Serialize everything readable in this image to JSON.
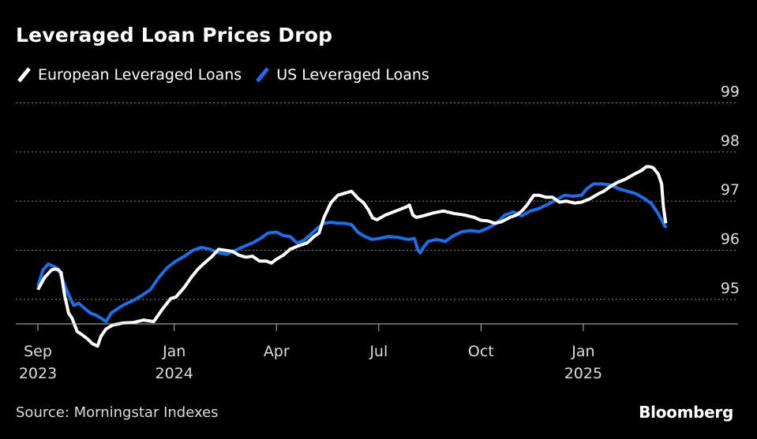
{
  "header": {
    "title": "Leveraged Loan Prices Drop"
  },
  "footer": {
    "source": "Source: Morningstar Indexes",
    "brand": "Bloomberg"
  },
  "chart_data": {
    "type": "line",
    "title": "Leveraged Loan Prices Drop",
    "xlabel": "",
    "ylabel": "",
    "ylim": [
      94.55,
      99.2
    ],
    "xlim": [
      0,
      19.5
    ],
    "y_ticks": [
      95,
      96,
      97,
      98,
      99
    ],
    "x_ticks": [
      {
        "x": 0,
        "label": "Sep",
        "sublabel": "2023"
      },
      {
        "x": 4,
        "label": "Jan",
        "sublabel": "2024"
      },
      {
        "x": 7,
        "label": "Apr",
        "sublabel": ""
      },
      {
        "x": 10,
        "label": "Jul",
        "sublabel": ""
      },
      {
        "x": 13,
        "label": "Oct",
        "sublabel": ""
      },
      {
        "x": 16,
        "label": "Jan",
        "sublabel": "2025"
      }
    ],
    "x_unit": "months since Sep 1, 2023",
    "grid": true,
    "legend_position": "top-left",
    "series": [
      {
        "name": "European Leveraged Loans",
        "color": "#ffffff",
        "points": [
          [
            0.0,
            95.2
          ],
          [
            0.2,
            95.45
          ],
          [
            0.4,
            95.6
          ],
          [
            0.5,
            95.62
          ],
          [
            0.6,
            95.6
          ],
          [
            0.68,
            95.55
          ],
          [
            0.78,
            95.1
          ],
          [
            0.9,
            94.72
          ],
          [
            1.0,
            94.62
          ],
          [
            1.15,
            94.35
          ],
          [
            1.3,
            94.28
          ],
          [
            1.45,
            94.2
          ],
          [
            1.6,
            94.1
          ],
          [
            1.75,
            94.05
          ],
          [
            1.85,
            94.25
          ],
          [
            2.0,
            94.4
          ],
          [
            2.2,
            94.48
          ],
          [
            2.5,
            94.52
          ],
          [
            2.8,
            94.53
          ],
          [
            3.1,
            94.58
          ],
          [
            3.4,
            94.55
          ],
          [
            3.65,
            94.8
          ],
          [
            3.9,
            95.02
          ],
          [
            4.05,
            95.05
          ],
          [
            4.3,
            95.25
          ],
          [
            4.5,
            95.45
          ],
          [
            4.7,
            95.62
          ],
          [
            4.9,
            95.75
          ],
          [
            5.1,
            95.87
          ],
          [
            5.3,
            96.02
          ],
          [
            5.5,
            96.0
          ],
          [
            5.7,
            95.98
          ],
          [
            5.9,
            95.9
          ],
          [
            6.1,
            95.86
          ],
          [
            6.3,
            95.88
          ],
          [
            6.5,
            95.78
          ],
          [
            6.7,
            95.78
          ],
          [
            6.85,
            95.74
          ],
          [
            7.0,
            95.82
          ],
          [
            7.2,
            95.9
          ],
          [
            7.4,
            96.02
          ],
          [
            7.6,
            96.08
          ],
          [
            7.9,
            96.15
          ],
          [
            8.1,
            96.28
          ],
          [
            8.25,
            96.35
          ],
          [
            8.4,
            96.68
          ],
          [
            8.6,
            96.97
          ],
          [
            8.8,
            97.12
          ],
          [
            9.0,
            97.16
          ],
          [
            9.2,
            97.2
          ],
          [
            9.4,
            97.05
          ],
          [
            9.55,
            96.97
          ],
          [
            9.7,
            96.82
          ],
          [
            9.82,
            96.66
          ],
          [
            9.95,
            96.62
          ],
          [
            10.2,
            96.72
          ],
          [
            10.5,
            96.8
          ],
          [
            10.8,
            96.88
          ],
          [
            10.9,
            96.92
          ],
          [
            11.0,
            96.72
          ],
          [
            11.1,
            96.67
          ],
          [
            11.3,
            96.7
          ],
          [
            11.6,
            96.76
          ],
          [
            11.9,
            96.8
          ],
          [
            12.2,
            96.75
          ],
          [
            12.5,
            96.72
          ],
          [
            12.8,
            96.67
          ],
          [
            13.0,
            96.61
          ],
          [
            13.2,
            96.6
          ],
          [
            13.4,
            96.55
          ],
          [
            13.6,
            96.58
          ],
          [
            13.85,
            96.67
          ],
          [
            14.05,
            96.72
          ],
          [
            14.2,
            96.8
          ],
          [
            14.35,
            96.92
          ],
          [
            14.55,
            97.12
          ],
          [
            14.7,
            97.12
          ],
          [
            14.9,
            97.08
          ],
          [
            15.1,
            97.08
          ],
          [
            15.3,
            96.98
          ],
          [
            15.5,
            97.0
          ],
          [
            15.75,
            96.96
          ],
          [
            15.95,
            96.98
          ],
          [
            16.2,
            97.05
          ],
          [
            16.45,
            97.15
          ],
          [
            16.6,
            97.2
          ],
          [
            16.8,
            97.3
          ],
          [
            17.0,
            97.38
          ],
          [
            17.25,
            97.45
          ],
          [
            17.5,
            97.55
          ],
          [
            17.7,
            97.62
          ],
          [
            17.85,
            97.7
          ],
          [
            17.95,
            97.7
          ],
          [
            18.05,
            97.68
          ],
          [
            18.2,
            97.55
          ],
          [
            18.3,
            97.35
          ],
          [
            18.35,
            96.9
          ],
          [
            18.42,
            96.55
          ]
        ]
      },
      {
        "name": "US Leveraged Loans",
        "color": "#1f6ee8",
        "points": [
          [
            0.0,
            95.27
          ],
          [
            0.15,
            95.6
          ],
          [
            0.3,
            95.72
          ],
          [
            0.45,
            95.68
          ],
          [
            0.6,
            95.62
          ],
          [
            0.75,
            95.35
          ],
          [
            0.9,
            95.1
          ],
          [
            1.05,
            94.88
          ],
          [
            1.2,
            94.92
          ],
          [
            1.4,
            94.8
          ],
          [
            1.55,
            94.72
          ],
          [
            1.7,
            94.68
          ],
          [
            1.85,
            94.62
          ],
          [
            2.0,
            94.55
          ],
          [
            2.15,
            94.72
          ],
          [
            2.35,
            94.82
          ],
          [
            2.55,
            94.9
          ],
          [
            2.8,
            94.98
          ],
          [
            3.05,
            95.08
          ],
          [
            3.3,
            95.2
          ],
          [
            3.55,
            95.45
          ],
          [
            3.8,
            95.65
          ],
          [
            4.05,
            95.78
          ],
          [
            4.3,
            95.88
          ],
          [
            4.55,
            96.0
          ],
          [
            4.8,
            96.06
          ],
          [
            5.05,
            96.02
          ],
          [
            5.3,
            95.95
          ],
          [
            5.55,
            95.92
          ],
          [
            5.8,
            96.0
          ],
          [
            6.05,
            96.08
          ],
          [
            6.3,
            96.15
          ],
          [
            6.55,
            96.25
          ],
          [
            6.75,
            96.35
          ],
          [
            7.0,
            96.37
          ],
          [
            7.2,
            96.3
          ],
          [
            7.4,
            96.28
          ],
          [
            7.6,
            96.15
          ],
          [
            7.8,
            96.2
          ],
          [
            8.0,
            96.32
          ],
          [
            8.2,
            96.45
          ],
          [
            8.4,
            96.55
          ],
          [
            8.6,
            96.57
          ],
          [
            8.8,
            96.55
          ],
          [
            9.0,
            96.55
          ],
          [
            9.2,
            96.52
          ],
          [
            9.4,
            96.36
          ],
          [
            9.6,
            96.28
          ],
          [
            9.8,
            96.22
          ],
          [
            10.0,
            96.24
          ],
          [
            10.3,
            96.28
          ],
          [
            10.6,
            96.26
          ],
          [
            10.85,
            96.22
          ],
          [
            11.05,
            96.24
          ],
          [
            11.15,
            96.0
          ],
          [
            11.22,
            95.95
          ],
          [
            11.3,
            96.05
          ],
          [
            11.45,
            96.18
          ],
          [
            11.7,
            96.22
          ],
          [
            11.95,
            96.18
          ],
          [
            12.2,
            96.3
          ],
          [
            12.45,
            96.38
          ],
          [
            12.7,
            96.4
          ],
          [
            12.95,
            96.38
          ],
          [
            13.2,
            96.45
          ],
          [
            13.45,
            96.55
          ],
          [
            13.7,
            96.72
          ],
          [
            13.95,
            96.78
          ],
          [
            14.2,
            96.7
          ],
          [
            14.45,
            96.8
          ],
          [
            14.7,
            96.85
          ],
          [
            14.95,
            96.93
          ],
          [
            15.2,
            97.02
          ],
          [
            15.45,
            97.12
          ],
          [
            15.7,
            97.1
          ],
          [
            15.95,
            97.12
          ],
          [
            16.1,
            97.25
          ],
          [
            16.3,
            97.35
          ],
          [
            16.55,
            97.35
          ],
          [
            16.8,
            97.33
          ],
          [
            17.05,
            97.25
          ],
          [
            17.3,
            97.2
          ],
          [
            17.55,
            97.15
          ],
          [
            17.8,
            97.05
          ],
          [
            18.0,
            96.95
          ],
          [
            18.15,
            96.8
          ],
          [
            18.3,
            96.62
          ],
          [
            18.4,
            96.48
          ],
          [
            18.45,
            96.5
          ]
        ]
      }
    ]
  }
}
